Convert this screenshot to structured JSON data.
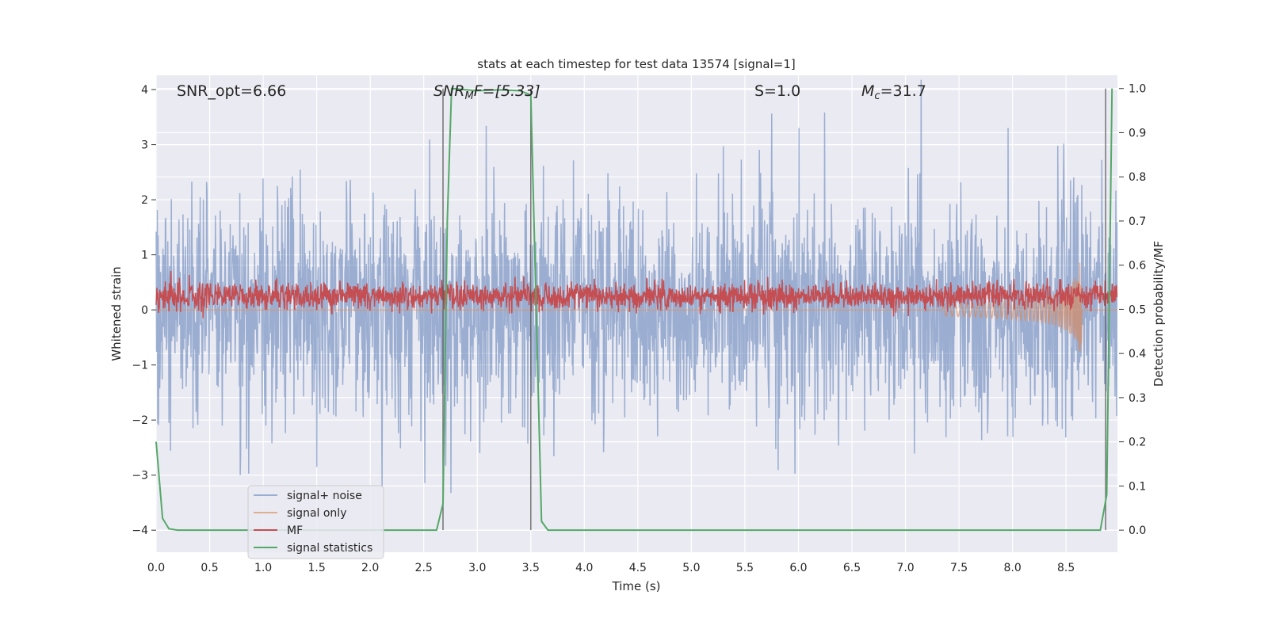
{
  "chart_data": {
    "type": "line",
    "title": "stats at each timestep for test data 13574 [signal=1]",
    "xlabel": "Time (s)",
    "ylabel": "Whitened strain",
    "ylabel_right": "Detection probability/MF",
    "xlim": [
      0,
      8.98
    ],
    "ylim": [
      -4.4,
      4.26
    ],
    "ylim_right": [
      -0.05,
      1.03
    ],
    "xticks": [
      "0.0",
      "0.5",
      "1.0",
      "1.5",
      "2.0",
      "2.5",
      "3.0",
      "3.5",
      "4.0",
      "4.5",
      "5.0",
      "5.5",
      "6.0",
      "6.5",
      "7.0",
      "7.5",
      "8.0",
      "8.5"
    ],
    "yticks": [
      "4",
      "3",
      "2",
      "1",
      "0",
      "−1",
      "−2",
      "−3",
      "−4"
    ],
    "yticks_right": [
      "1.0",
      "0.9",
      "0.8",
      "0.7",
      "0.6",
      "0.5",
      "0.4",
      "0.3",
      "0.2",
      "0.1",
      "0.0"
    ],
    "grid": true,
    "legend_position": "lower-left",
    "annotations": {
      "snr_opt": "SNR_opt=6.66",
      "snr_mf_main": "SNR",
      "snr_mf_sub": "M",
      "snr_mf_rest": "F=[5.33]",
      "s": "S=1.0",
      "mc_main": "M",
      "mc_sub": "c",
      "mc_rest": "=31.7"
    },
    "series": [
      {
        "name": "signal+ noise",
        "color": "#4c72b0",
        "description_values": {
          "mean": 0,
          "std": 1.0,
          "samples": 2400
        }
      },
      {
        "name": "signal only",
        "color": "#dd8452",
        "chirp_peak_time": 8.65,
        "peak_amplitude": 1.4
      },
      {
        "name": "MF",
        "color": "#c44e52",
        "mean": 0.25,
        "std": 0.12
      },
      {
        "name": "signal statistics",
        "color": "#55a868",
        "axis": "right",
        "x": [
          0,
          0.06,
          0.12,
          0.2,
          0.5,
          1.0,
          2.0,
          2.62,
          2.68,
          2.72,
          2.76,
          3.0,
          3.2,
          3.4,
          3.5,
          3.6,
          3.66,
          4.0,
          6.0,
          8.0,
          8.82,
          8.88,
          8.93
        ],
        "y": [
          0.2,
          0.027,
          0.003,
          0.0,
          0.0,
          0.0,
          0.0,
          0.0,
          0.06,
          0.7,
          1.0,
          0.995,
          0.997,
          0.995,
          0.985,
          0.02,
          0.0,
          0.0,
          0.0,
          0.0,
          0.0,
          0.08,
          1.0
        ]
      }
    ],
    "vertical_lines": [
      2.68,
      3.5,
      8.87
    ]
  }
}
